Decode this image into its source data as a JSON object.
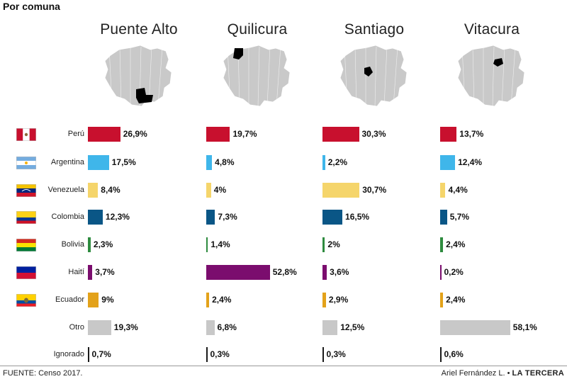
{
  "header": {
    "title": "Por comuna"
  },
  "footer": {
    "source": "FUENTE: Censo 2017.",
    "author": "Ariel Fernández L. •",
    "publication": "LA TERCERA"
  },
  "icons": {
    "flags": [
      "peru-flag-icon",
      "argentina-flag-icon",
      "venezuela-flag-icon",
      "colombia-flag-icon",
      "bolivia-flag-icon",
      "haiti-flag-icon",
      "ecuador-flag-icon"
    ],
    "maps": [
      "santiago-region-map-icon"
    ]
  },
  "chart_data": {
    "type": "bar",
    "orientation": "horizontal",
    "categories": [
      "Perú",
      "Argentina",
      "Venezuela",
      "Colombia",
      "Bolivia",
      "Haití",
      "Ecuador",
      "Otro",
      "Ignorado"
    ],
    "colors": [
      "#c8102e",
      "#3fb6ea",
      "#f5d56b",
      "#0a5686",
      "#2e8b3f",
      "#7b0d6e",
      "#e3a21a",
      "#c8c8c8",
      "#1a1a1a"
    ],
    "series": [
      {
        "name": "Puente Alto",
        "values": [
          26.9,
          17.5,
          8.4,
          12.3,
          2.3,
          3.7,
          9,
          19.3,
          0.7
        ],
        "labels": [
          "26,9%",
          "17,5%",
          "8,4%",
          "12,3%",
          "2,3%",
          "3,7%",
          "9%",
          "19,3%",
          "0,7%"
        ]
      },
      {
        "name": "Quilicura",
        "values": [
          19.7,
          4.8,
          4,
          7.3,
          1.4,
          52.8,
          2.4,
          6.8,
          0.3
        ],
        "labels": [
          "19,7%",
          "4,8%",
          "4%",
          "7,3%",
          "1,4%",
          "52,8%",
          "2,4%",
          "6,8%",
          "0,3%"
        ]
      },
      {
        "name": "Santiago",
        "values": [
          30.3,
          2.2,
          30.7,
          16.5,
          2,
          3.6,
          2.9,
          12.5,
          0.3
        ],
        "labels": [
          "30,3%",
          "2,2%",
          "30,7%",
          "16,5%",
          "2%",
          "3,6%",
          "2,9%",
          "12,5%",
          "0,3%"
        ]
      },
      {
        "name": "Vitacura",
        "values": [
          13.7,
          12.4,
          4.4,
          5.7,
          2.4,
          0.2,
          2.4,
          58.1,
          0.6
        ],
        "labels": [
          "13,7%",
          "12,4%",
          "4,4%",
          "5,7%",
          "2,4%",
          "0,2%",
          "2,4%",
          "58,1%",
          "0,6%"
        ]
      }
    ],
    "xlim": [
      0,
      60
    ],
    "xlabel": "",
    "ylabel": "",
    "grid": false,
    "legend": "none"
  }
}
